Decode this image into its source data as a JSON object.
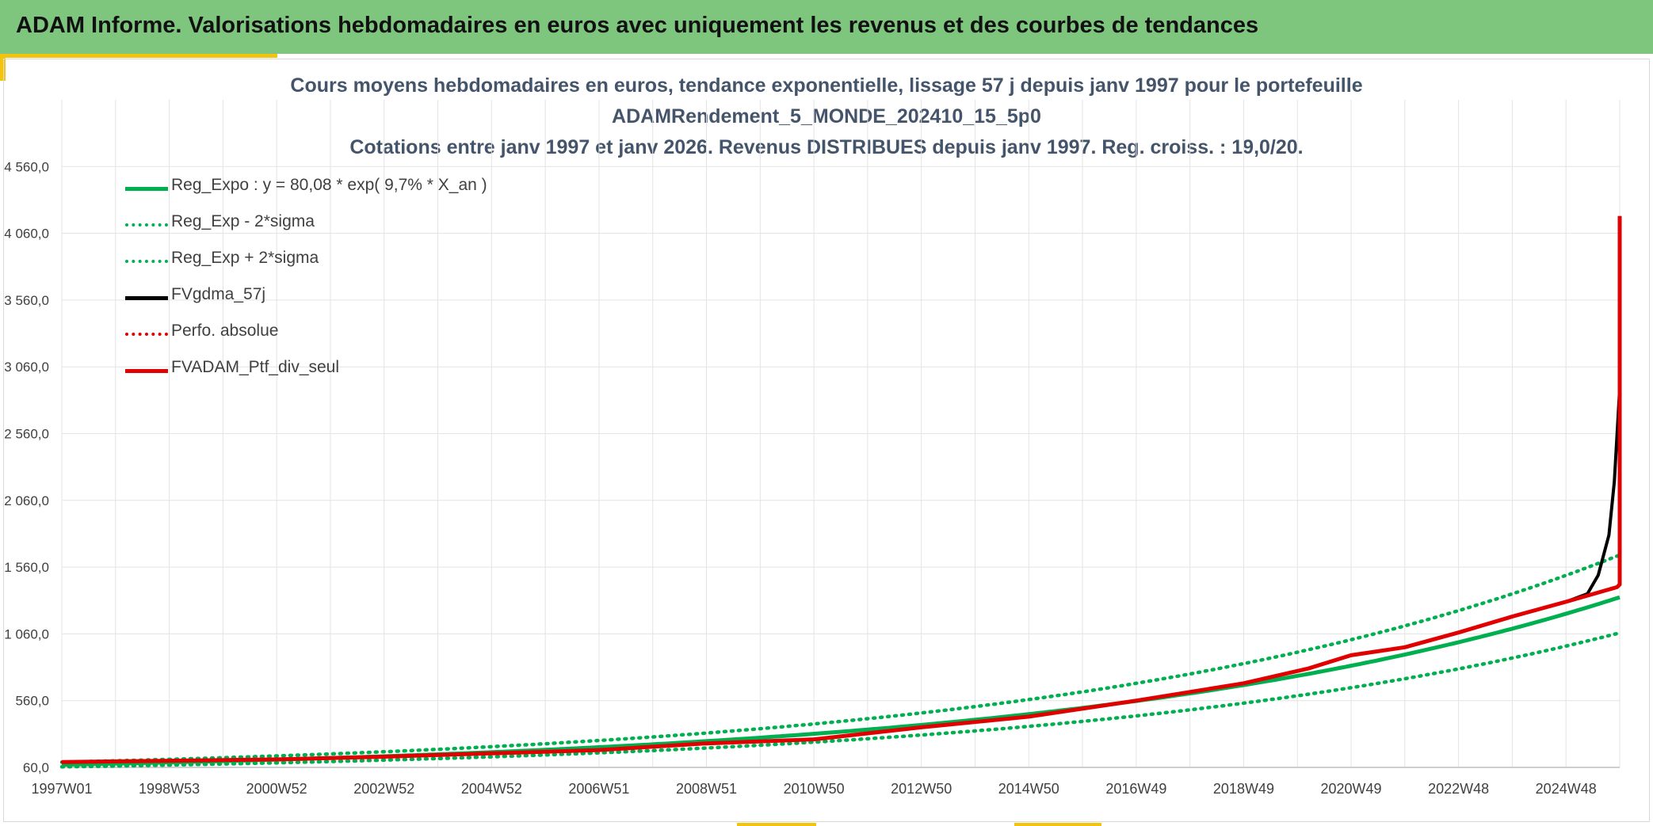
{
  "header": {
    "title": "ADAM Informe. Valorisations hebdomadaires en euros avec uniquement les revenus et des courbes de tendances"
  },
  "colors": {
    "banner": "#7ec57e",
    "accent": "#f2c30f",
    "regression": "#00b050",
    "gdma": "#000000",
    "portfolio": "#e00000",
    "title_text": "#44546a"
  },
  "chart_data": {
    "type": "line",
    "title_lines": [
      "Cours moyens hebdomadaires en euros, tendance exponentielle, lissage 57 j depuis janv 1997 pour le portefeuille",
      "ADAMRendement_5_MONDE_202410_15_5p0",
      "Cotations entre janv 1997 et janv 2026. Revenus DISTRIBUES depuis janv 1997. Reg. croiss. : 19,0/20."
    ],
    "xlabel": "",
    "ylabel": "",
    "x_tick_labels": [
      "1997W01",
      "1998W53",
      "2000W52",
      "2002W52",
      "2004W52",
      "2006W51",
      "2008W51",
      "2010W50",
      "2012W50",
      "2014W50",
      "2016W49",
      "2018W49",
      "2020W49",
      "2022W48",
      "2024W48"
    ],
    "x_tick_years": [
      1997,
      1999,
      2001,
      2003,
      2005,
      2007,
      2009,
      2011,
      2013,
      2015,
      2017,
      2019,
      2021,
      2023,
      2025
    ],
    "x_range_years": [
      1997,
      2026
    ],
    "y_tick_labels": [
      "60,0",
      "560,0",
      "1 060,0",
      "1 560,0",
      "2 060,0",
      "2 560,0",
      "3 060,0",
      "3 560,0",
      "4 060,0",
      "4 560,0"
    ],
    "y_ticks": [
      60,
      560,
      1060,
      1560,
      2060,
      2560,
      3060,
      3560,
      4060,
      4560
    ],
    "ylim": [
      60,
      5060
    ],
    "grid": true,
    "legend_position": "top-left",
    "regression": {
      "a": 80.08,
      "rate": 0.097
    },
    "series": [
      {
        "name": "Reg_Expo : y = 80,08 * exp( 9,7% *  X_an )",
        "style": "solid",
        "color": "#00b050",
        "x": [
          1997,
          1999,
          2001,
          2003,
          2005,
          2007,
          2009,
          2011,
          2013,
          2015,
          2017,
          2019,
          2021,
          2023,
          2025,
          2026
        ],
        "y": [
          80,
          97,
          118,
          143,
          174,
          212,
          256,
          311,
          378,
          459,
          557,
          676,
          821,
          996,
          1210,
          1333
        ]
      },
      {
        "name": "Reg_Exp - 2*sigma",
        "style": "dotted",
        "color": "#00b050",
        "x": [
          1997,
          1999,
          2001,
          2003,
          2005,
          2007,
          2009,
          2011,
          2013,
          2015,
          2017,
          2019,
          2021,
          2023,
          2025,
          2026
        ],
        "y": [
          64,
          78,
          95,
          115,
          140,
          170,
          206,
          250,
          304,
          369,
          448,
          544,
          660,
          802,
          973,
          1072
        ]
      },
      {
        "name": "Reg_Exp + 2*sigma",
        "style": "dotted",
        "color": "#00b050",
        "x": [
          1997,
          1999,
          2001,
          2003,
          2005,
          2007,
          2009,
          2011,
          2013,
          2015,
          2017,
          2019,
          2021,
          2023,
          2025,
          2026
        ],
        "y": [
          99,
          120,
          146,
          177,
          215,
          261,
          317,
          385,
          467,
          567,
          689,
          836,
          1015,
          1232,
          1496,
          1649
        ]
      },
      {
        "name": "FVgdma_57j",
        "style": "solid",
        "color": "#000000",
        "x": [
          1997,
          1999,
          2001,
          2003,
          2005,
          2007,
          2009,
          2011,
          2013,
          2015,
          2017,
          2019,
          2020.2,
          2021,
          2022,
          2023,
          2024,
          2025,
          2025.4,
          2025.6,
          2025.8,
          2025.9,
          2026
        ],
        "y": [
          100,
          110,
          120,
          140,
          165,
          190,
          240,
          270,
          360,
          440,
          560,
          690,
          800,
          900,
          960,
          1070,
          1190,
          1300,
          1360,
          1500,
          1800,
          2200,
          2900
        ]
      },
      {
        "name": "Perfo. absolue",
        "style": "dotted",
        "color": "#e00000",
        "x": [
          1997,
          1999,
          2001,
          2003,
          2005,
          2007,
          2009,
          2011,
          2013,
          2015,
          2017,
          2019,
          2020.2,
          2021,
          2022,
          2023,
          2024,
          2025,
          2026
        ],
        "y": [
          100,
          110,
          120,
          140,
          165,
          190,
          240,
          270,
          360,
          440,
          560,
          690,
          800,
          900,
          960,
          1070,
          1190,
          1300,
          1420
        ]
      },
      {
        "name": "FVADAM_Ptf_div_seul",
        "style": "solid",
        "color": "#e00000",
        "x": [
          1997,
          1999,
          2001,
          2003,
          2005,
          2007,
          2009,
          2011,
          2013,
          2015,
          2017,
          2019,
          2020.2,
          2021,
          2022,
          2023,
          2024,
          2025,
          2025.95,
          2026,
          2026
        ],
        "y": [
          100,
          110,
          120,
          140,
          165,
          190,
          240,
          270,
          360,
          440,
          560,
          690,
          800,
          900,
          960,
          1070,
          1190,
          1300,
          1410,
          1430,
          4190
        ]
      }
    ]
  }
}
